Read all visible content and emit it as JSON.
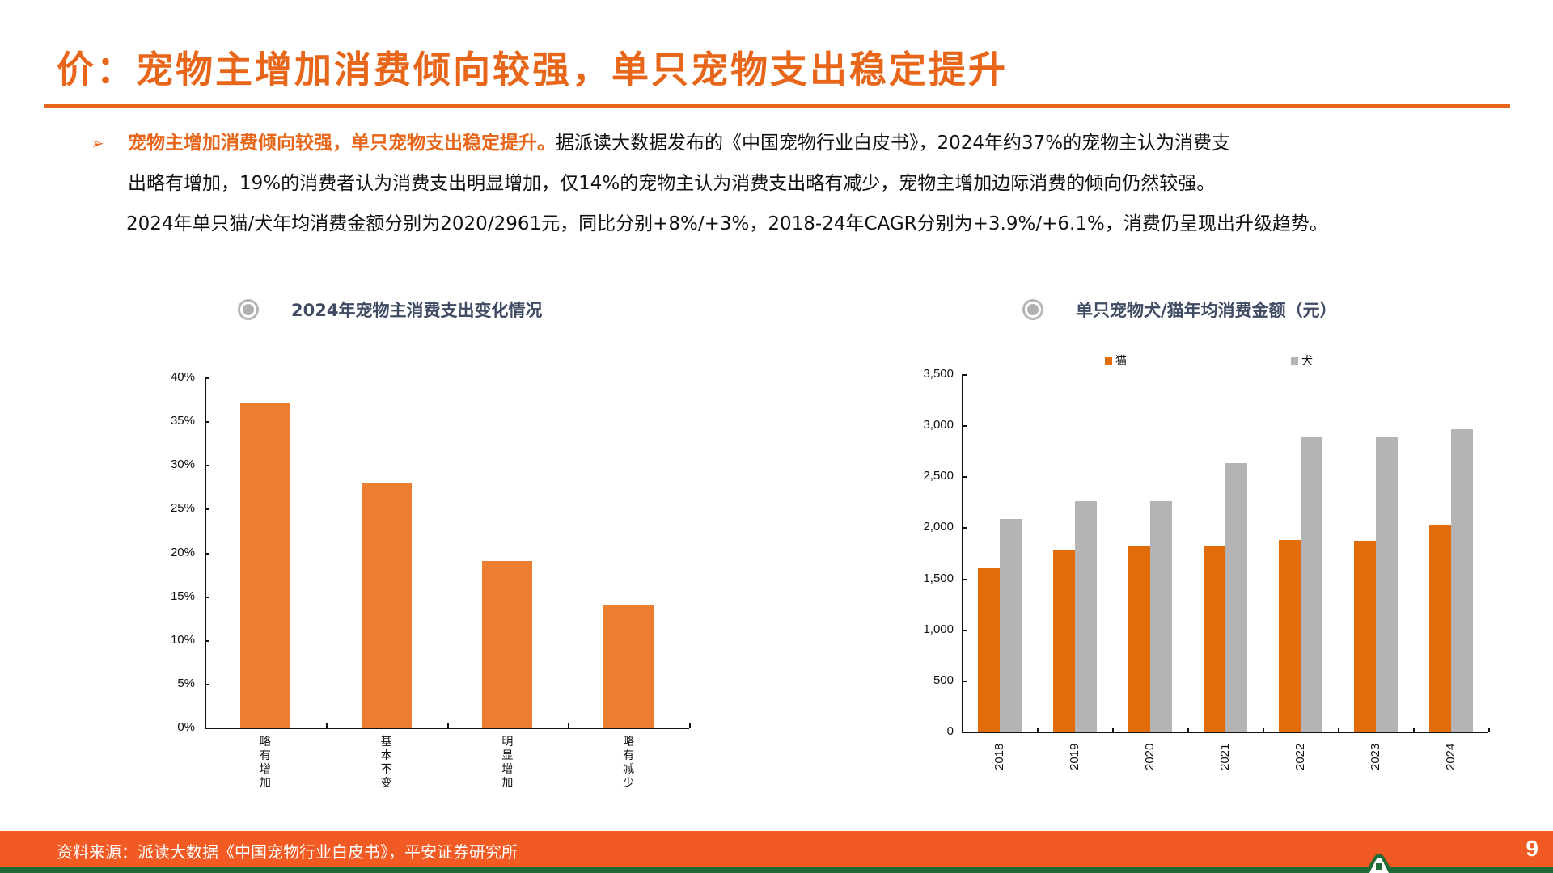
{
  "title": "价：宠物主增加消费倾向较强，单只宠物支出稳定提升",
  "paragraph": {
    "bullet_icon": "➢",
    "highlight": "宠物主增加消费倾向较强，单只宠物支出稳定提升。",
    "line1_rest": "据派读大数据发布的《中国宠物行业白皮书》，2024年约37%的宠物主认为消费支",
    "line2": "出略有增加，19%的消费者认为消费支出明显增加，仅14%的宠物主认为消费支出略有减少，宠物主增加边际消费的倾向仍然较强。",
    "line3": "2024年单只猫/犬年均消费金额分别为2020/2961元，同比分别+8%/+3%，2018-24年CAGR分别为+3.9%/+6.1%，消费仍呈现出升级趋势。"
  },
  "colors": {
    "accent": "#E8661A",
    "bar_left": "#ED7D31",
    "cat": "#E36C0A",
    "dog": "#B4B4B4",
    "footer": "#F15A22",
    "footer_strip": "#1E6B35",
    "chart_title": "#3F4B62"
  },
  "chart_data": [
    {
      "type": "bar",
      "title": "2024年宠物主消费支出变化情况",
      "categories": [
        "略有增加",
        "基本不变",
        "明显增加",
        "略有减少"
      ],
      "values": [
        37,
        28,
        19,
        14
      ],
      "value_unit": "%",
      "xlabel": "",
      "ylabel": "",
      "ylim": [
        0,
        40
      ],
      "yticks": [
        "0%",
        "5%",
        "10%",
        "15%",
        "20%",
        "25%",
        "30%",
        "35%",
        "40%"
      ],
      "grid": false,
      "legend": null
    },
    {
      "type": "bar",
      "title": "单只宠物犬/猫年均消费金额（元）",
      "categories": [
        "2018",
        "2019",
        "2020",
        "2021",
        "2022",
        "2023",
        "2024"
      ],
      "series": [
        {
          "name": "猫",
          "values": [
            1600,
            1770,
            1820,
            1820,
            1880,
            1870,
            2020
          ]
        },
        {
          "name": "犬",
          "values": [
            2080,
            2260,
            2260,
            2630,
            2880,
            2880,
            2961
          ]
        }
      ],
      "xlabel": "",
      "ylabel": "",
      "ylim": [
        0,
        3500
      ],
      "yticks": [
        "0",
        "500",
        "1,000",
        "1,500",
        "2,000",
        "2,500",
        "3,000",
        "3,500"
      ],
      "grid": false,
      "legend_position": "top"
    }
  ],
  "footer": {
    "source": "资料来源：派读大数据《中国宠物行业白皮书》，平安证券研究所",
    "page_number": "9"
  }
}
